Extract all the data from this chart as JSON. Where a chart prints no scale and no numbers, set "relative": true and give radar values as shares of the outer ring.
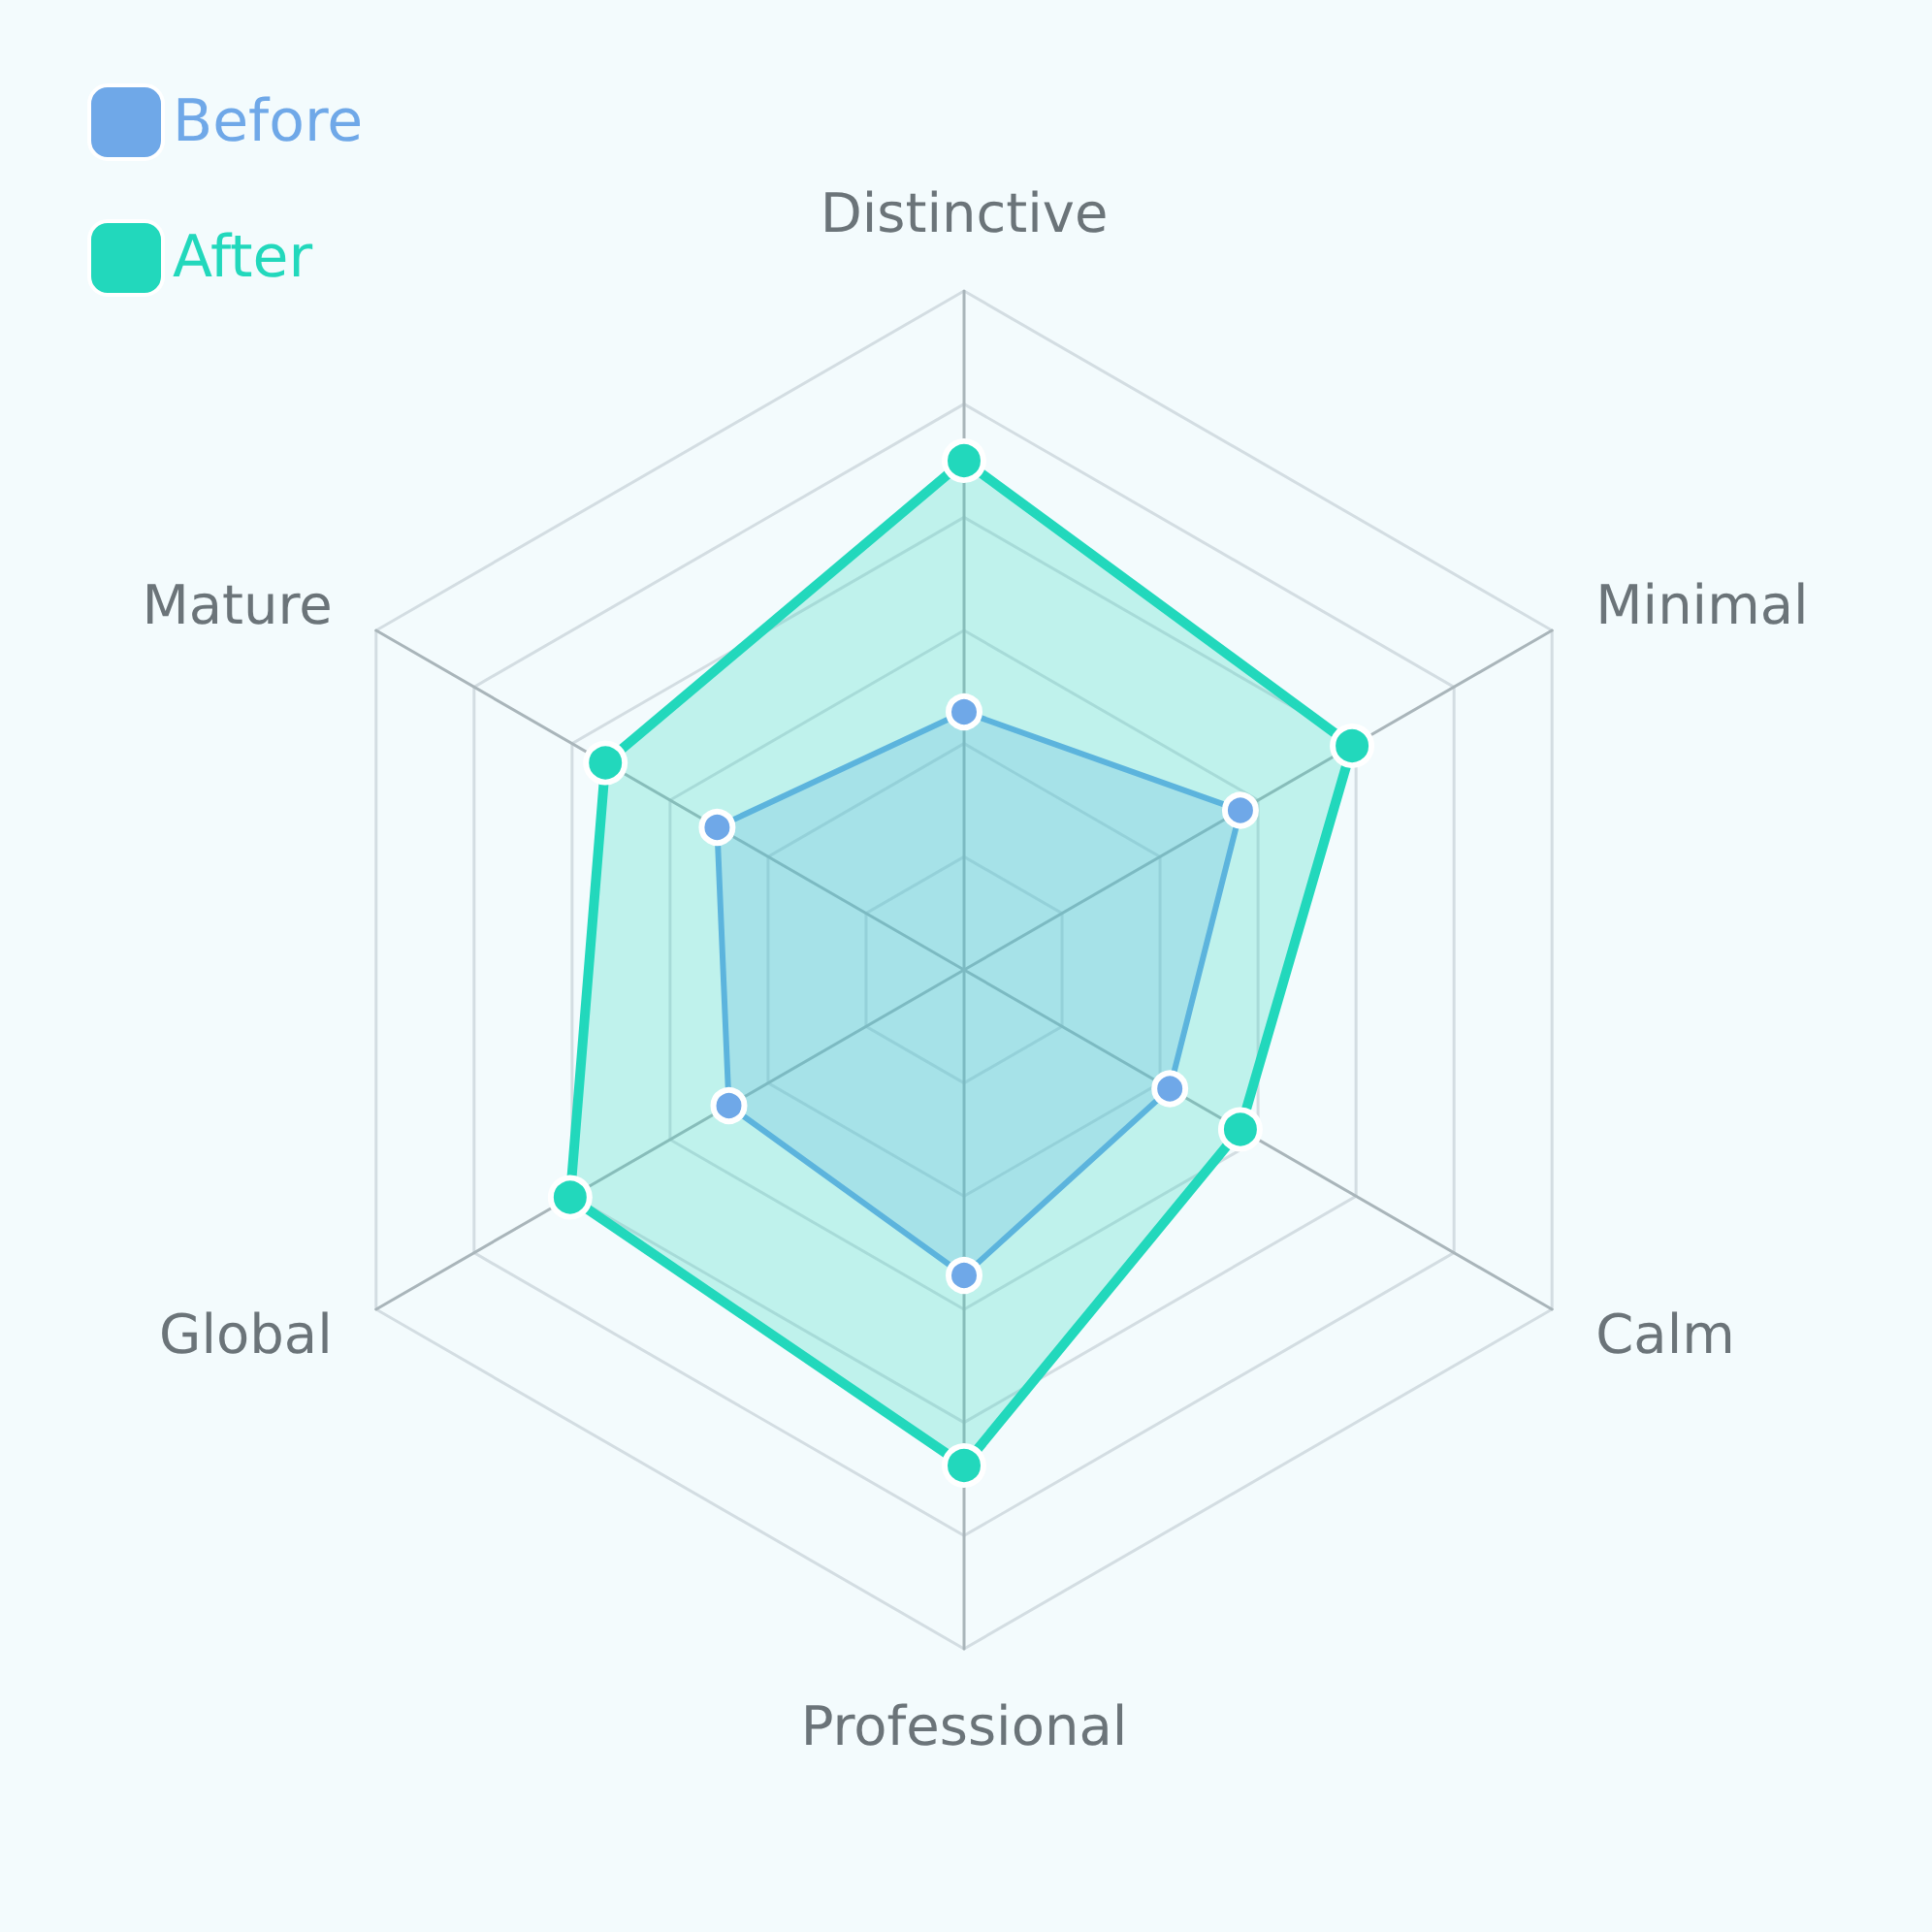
{
  "chart_data": {
    "type": "radar",
    "relative": true,
    "categories": [
      "Distinctive",
      "Minimal",
      "Calm",
      "Professional",
      "Global",
      "Mature"
    ],
    "series": [
      {
        "name": "Before",
        "color": "#6fa8e8",
        "values": [
          0.38,
          0.47,
          0.35,
          0.45,
          0.4,
          0.42
        ]
      },
      {
        "name": "After",
        "color": "#22d8bc",
        "values": [
          0.75,
          0.66,
          0.47,
          0.73,
          0.67,
          0.61
        ]
      }
    ],
    "legend": "top left",
    "marker": "circle"
  }
}
